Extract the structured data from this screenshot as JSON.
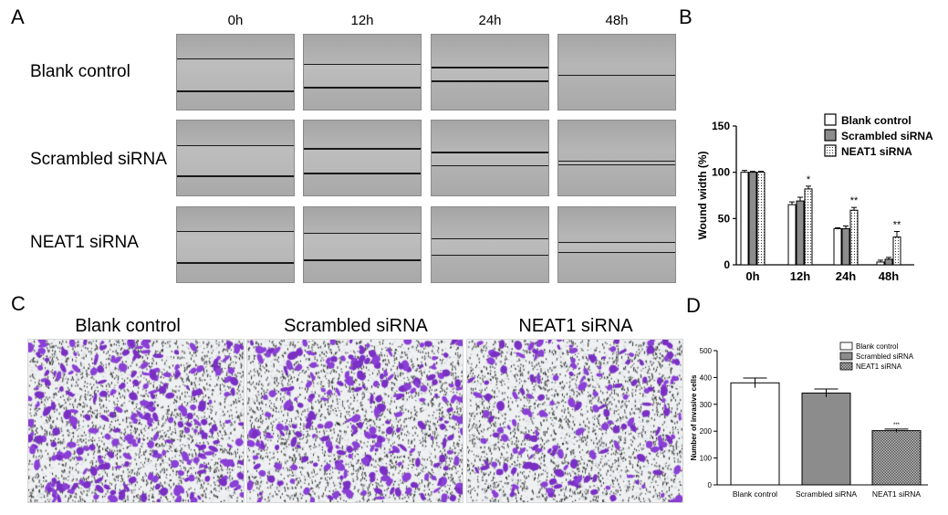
{
  "panels": {
    "a": "A",
    "b": "B",
    "c": "C",
    "d": "D"
  },
  "panel_a": {
    "timepoints": [
      "0h",
      "12h",
      "24h",
      "48h"
    ],
    "rows": [
      "Blank control",
      "Scrambled siRNA",
      "NEAT1 siRNA"
    ]
  },
  "panel_c": {
    "titles": [
      "Blank control",
      "Scrambled siRNA",
      "NEAT1 siRNA"
    ]
  },
  "colors": {
    "stain_purple": "#7a2fc4",
    "stain_background": "#eef0f2",
    "scrambled_bar": "#8c8c8c",
    "neat1_bar_d": "#9a9a9a"
  },
  "chart_data": [
    {
      "type": "bar",
      "panel": "B",
      "categories": [
        "0h",
        "12h",
        "24h",
        "48h"
      ],
      "series": [
        {
          "name": "Blank control",
          "values": [
            100,
            65,
            39,
            3
          ],
          "errors": [
            2,
            3,
            1,
            2
          ]
        },
        {
          "name": "Scrambled siRNA",
          "values": [
            100,
            69,
            39,
            6
          ],
          "errors": [
            1,
            4,
            3,
            2
          ]
        },
        {
          "name": "NEAT1 siRNA",
          "values": [
            100,
            82,
            59,
            30
          ],
          "errors": [
            1,
            3,
            3,
            6
          ]
        }
      ],
      "significance": [
        {
          "category": "12h",
          "label": "*"
        },
        {
          "category": "24h",
          "label": "**"
        },
        {
          "category": "48h",
          "label": "**"
        }
      ],
      "ylabel": "Wound width (%)",
      "ylim": [
        0,
        150
      ],
      "yticks": [
        0,
        50,
        100,
        150
      ],
      "legend": "top-right",
      "grid": false
    },
    {
      "type": "bar",
      "panel": "D",
      "categories": [
        "Blank control",
        "Scrambled siRNA",
        "NEAT1 siRNA"
      ],
      "series": [
        {
          "name": "",
          "values": [
            380,
            342,
            202
          ],
          "errors": [
            18,
            15,
            6
          ]
        }
      ],
      "legend_entries": [
        "Blank control",
        "Scrambled siRNA",
        "NEAT1 siRNA"
      ],
      "significance": [
        {
          "category": "NEAT1 siRNA",
          "label": "***"
        }
      ],
      "ylabel": "Number of invasive cells",
      "ylim": [
        0,
        500
      ],
      "yticks": [
        0,
        100,
        200,
        300,
        400,
        500
      ],
      "legend": "top-right",
      "grid": false
    }
  ]
}
